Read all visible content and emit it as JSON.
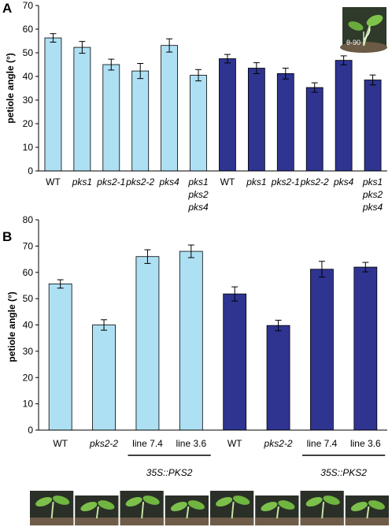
{
  "panels": [
    {
      "label": "A",
      "chart_data": {
        "type": "bar",
        "ylabel": "petiole angle (°)",
        "ylim": [
          0,
          70
        ],
        "yticks": [
          0,
          10,
          20,
          30,
          40,
          50,
          60,
          70
        ],
        "categories": [
          "WT",
          "pks1",
          "pks2-1",
          "pks2-2",
          "pks4",
          "pks1\npks2\npks4",
          "WT",
          "pks1",
          "pks2-1",
          "pks2-2",
          "pks4",
          "pks1\npks2\npks4"
        ],
        "italic": [
          false,
          true,
          true,
          true,
          true,
          true,
          false,
          true,
          true,
          true,
          true,
          true
        ],
        "values": [
          56.3,
          52.3,
          45.0,
          42.3,
          53.1,
          40.5,
          47.5,
          43.5,
          41.2,
          35.3,
          46.8,
          38.5
        ],
        "errors": [
          1.8,
          2.5,
          2.3,
          3.2,
          2.8,
          2.4,
          1.8,
          2.3,
          2.3,
          2.0,
          1.9,
          2.1
        ],
        "colors": [
          "#aee0f4",
          "#aee0f4",
          "#aee0f4",
          "#aee0f4",
          "#aee0f4",
          "#aee0f4",
          "#2e3490",
          "#2e3490",
          "#2e3490",
          "#2e3490",
          "#2e3490",
          "#2e3490"
        ],
        "grid": false,
        "inset": {
          "label": "θ-90"
        }
      }
    },
    {
      "label": "B",
      "chart_data": {
        "type": "bar",
        "ylabel": "petiole angle (°)",
        "ylim": [
          0,
          80
        ],
        "yticks": [
          0,
          10,
          20,
          30,
          40,
          50,
          60,
          70,
          80
        ],
        "categories": [
          "WT",
          "pks2-2",
          "line 7.4",
          "line 3.6",
          "WT",
          "pks2-2",
          "line 7.4",
          "line 3.6"
        ],
        "italic": [
          false,
          true,
          false,
          false,
          false,
          true,
          false,
          false
        ],
        "values": [
          55.6,
          40.0,
          66.0,
          68.0,
          51.8,
          39.8,
          61.2,
          62.0
        ],
        "errors": [
          1.6,
          2.0,
          2.6,
          2.4,
          2.7,
          2.0,
          3.0,
          1.8
        ],
        "colors": [
          "#aee0f4",
          "#aee0f4",
          "#aee0f4",
          "#aee0f4",
          "#2e3490",
          "#2e3490",
          "#2e3490",
          "#2e3490"
        ],
        "grid": false,
        "group_labels": [
          {
            "text": "35S::PKS2",
            "categories": [
              2,
              3
            ]
          },
          {
            "text": "35S::PKS2",
            "categories": [
              6,
              7
            ]
          }
        ]
      },
      "photo_strip": {
        "count": 8
      }
    }
  ]
}
